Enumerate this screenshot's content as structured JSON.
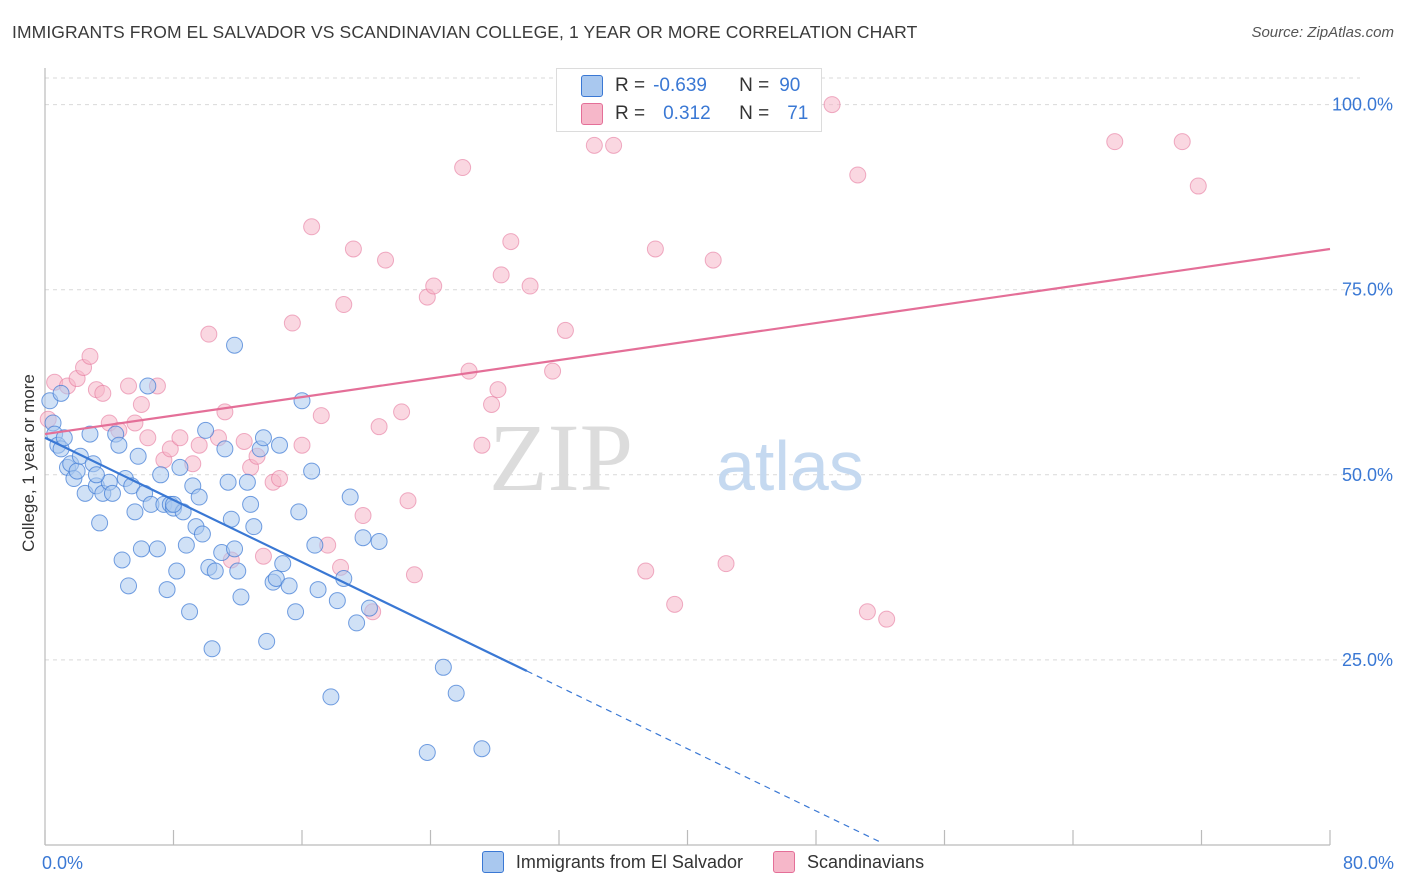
{
  "title": "IMMIGRANTS FROM EL SALVADOR VS SCANDINAVIAN COLLEGE, 1 YEAR OR MORE CORRELATION CHART",
  "source": "Source: ZipAtlas.com",
  "watermark": {
    "zip": "ZIP",
    "atlas": "atlas"
  },
  "stats": {
    "rows": [
      {
        "r_label": "R =",
        "r_value": "-0.639",
        "n_label": "N =",
        "n_value": "90",
        "color": "#a9c8ef"
      },
      {
        "r_label": "R =",
        "r_value": "0.312",
        "n_label": "N =",
        "n_value": "71",
        "color": "#f6b7c9"
      }
    ]
  },
  "legend": [
    {
      "label": "Immigrants from El Salvador",
      "color": "#a9c8ef"
    },
    {
      "label": "Scandinavians",
      "color": "#f6b7c9"
    }
  ],
  "x_labels": {
    "left": "0.0%",
    "right": "80.0%"
  },
  "colors": {
    "blue": "#3a78d4",
    "pink": "#e46f98",
    "blue_fill": "#a9c8ef",
    "pink_fill": "#f6b7c9",
    "grid": "#d9d9d9",
    "axis_text": "#3a78d4"
  },
  "chart_data": {
    "type": "scatter",
    "title": "IMMIGRANTS FROM EL SALVADOR VS SCANDINAVIAN COLLEGE, 1 YEAR OR MORE CORRELATION CHART",
    "xlabel": "",
    "ylabel": "College, 1 year or more",
    "xlim": [
      0,
      80
    ],
    "ylim": [
      0,
      104
    ],
    "y_ticks": [
      25,
      50,
      75,
      100
    ],
    "y_tick_labels": [
      "25.0%",
      "50.0%",
      "75.0%",
      "100.0%"
    ],
    "x_tick_labels": [
      "0.0%",
      "80.0%"
    ],
    "grid": true,
    "legend_position": "bottom",
    "series": [
      {
        "name": "Immigrants from El Salvador",
        "color": "#a9c8ef",
        "trend": {
          "x0": 0,
          "y0": 55,
          "x1": 30,
          "y1": 23.5,
          "dashed_to_x": 52
        },
        "points": [
          [
            0.3,
            60
          ],
          [
            0.5,
            57
          ],
          [
            0.6,
            55.5
          ],
          [
            0.8,
            54
          ],
          [
            1.0,
            53.5
          ],
          [
            1.2,
            55
          ],
          [
            1.4,
            51
          ],
          [
            1.6,
            51.5
          ],
          [
            1.8,
            49.5
          ],
          [
            2.0,
            50.5
          ],
          [
            2.2,
            52.5
          ],
          [
            2.5,
            47.5
          ],
          [
            2.8,
            55.5
          ],
          [
            3.0,
            51.5
          ],
          [
            3.2,
            48.5
          ],
          [
            3.4,
            43.5
          ],
          [
            3.6,
            47.5
          ],
          [
            4.0,
            49
          ],
          [
            4.2,
            47.5
          ],
          [
            4.4,
            55.5
          ],
          [
            4.6,
            54
          ],
          [
            4.8,
            38.5
          ],
          [
            5.0,
            49.5
          ],
          [
            5.2,
            35
          ],
          [
            5.4,
            48.5
          ],
          [
            5.6,
            45
          ],
          [
            5.8,
            52.5
          ],
          [
            6.0,
            40
          ],
          [
            6.2,
            47.5
          ],
          [
            6.6,
            46
          ],
          [
            7.0,
            40
          ],
          [
            7.2,
            50
          ],
          [
            7.4,
            46
          ],
          [
            7.6,
            34.5
          ],
          [
            7.8,
            46
          ],
          [
            8.0,
            45.5
          ],
          [
            8.2,
            37
          ],
          [
            8.4,
            51
          ],
          [
            8.6,
            45
          ],
          [
            8.8,
            40.5
          ],
          [
            9.0,
            31.5
          ],
          [
            9.2,
            48.5
          ],
          [
            9.4,
            43
          ],
          [
            9.6,
            47
          ],
          [
            9.8,
            42
          ],
          [
            10.0,
            56
          ],
          [
            10.2,
            37.5
          ],
          [
            10.4,
            26.5
          ],
          [
            10.6,
            37
          ],
          [
            11.0,
            39.5
          ],
          [
            11.2,
            53.5
          ],
          [
            11.4,
            49
          ],
          [
            11.6,
            44
          ],
          [
            11.8,
            40
          ],
          [
            12.0,
            37
          ],
          [
            12.2,
            33.5
          ],
          [
            12.6,
            49
          ],
          [
            12.8,
            46
          ],
          [
            13.0,
            43
          ],
          [
            13.4,
            53.5
          ],
          [
            13.6,
            55
          ],
          [
            13.8,
            27.5
          ],
          [
            14.2,
            35.5
          ],
          [
            14.4,
            36
          ],
          [
            14.6,
            54
          ],
          [
            14.8,
            38
          ],
          [
            15.2,
            35
          ],
          [
            15.6,
            31.5
          ],
          [
            15.8,
            45
          ],
          [
            16.0,
            60
          ],
          [
            16.8,
            40.5
          ],
          [
            17.0,
            34.5
          ],
          [
            17.8,
            20
          ],
          [
            18.2,
            33
          ],
          [
            18.6,
            36
          ],
          [
            19.0,
            47
          ],
          [
            19.4,
            30
          ],
          [
            19.8,
            41.5
          ],
          [
            20.2,
            32
          ],
          [
            20.8,
            41
          ],
          [
            23.8,
            12.5
          ],
          [
            24.8,
            24
          ],
          [
            25.6,
            20.5
          ],
          [
            27.2,
            13
          ],
          [
            11.8,
            67.5
          ],
          [
            6.4,
            62
          ],
          [
            16.6,
            50.5
          ],
          [
            8.0,
            46
          ],
          [
            3.2,
            50
          ],
          [
            1.0,
            61
          ]
        ]
      },
      {
        "name": "Scandinavians",
        "color": "#f6b7c9",
        "trend": {
          "x0": 0,
          "y0": 55.5,
          "x1": 80,
          "y1": 80.5
        },
        "points": [
          [
            0.2,
            57.5
          ],
          [
            0.6,
            62.5
          ],
          [
            1.4,
            62
          ],
          [
            2.0,
            63
          ],
          [
            2.4,
            64.5
          ],
          [
            2.8,
            66
          ],
          [
            3.2,
            61.5
          ],
          [
            3.6,
            61
          ],
          [
            4.0,
            57
          ],
          [
            4.6,
            56
          ],
          [
            5.2,
            62
          ],
          [
            5.6,
            57
          ],
          [
            6.0,
            59.5
          ],
          [
            6.4,
            55
          ],
          [
            7.0,
            62
          ],
          [
            7.4,
            52
          ],
          [
            7.8,
            53.5
          ],
          [
            8.4,
            55
          ],
          [
            9.2,
            51.5
          ],
          [
            9.6,
            54
          ],
          [
            10.2,
            69
          ],
          [
            10.8,
            55
          ],
          [
            11.2,
            58.5
          ],
          [
            11.6,
            38.5
          ],
          [
            12.4,
            54.5
          ],
          [
            12.8,
            51
          ],
          [
            13.2,
            52.5
          ],
          [
            13.6,
            39
          ],
          [
            14.2,
            49
          ],
          [
            14.6,
            49.5
          ],
          [
            15.4,
            70.5
          ],
          [
            16.0,
            54
          ],
          [
            16.6,
            83.5
          ],
          [
            17.2,
            58
          ],
          [
            17.6,
            40.5
          ],
          [
            18.4,
            37.5
          ],
          [
            18.6,
            73
          ],
          [
            19.2,
            80.5
          ],
          [
            19.8,
            44.5
          ],
          [
            20.4,
            31.5
          ],
          [
            20.8,
            56.5
          ],
          [
            21.2,
            79
          ],
          [
            22.2,
            58.5
          ],
          [
            22.6,
            46.5
          ],
          [
            23.0,
            36.5
          ],
          [
            23.8,
            74
          ],
          [
            24.2,
            75.5
          ],
          [
            26.0,
            91.5
          ],
          [
            26.4,
            64
          ],
          [
            27.2,
            54
          ],
          [
            27.8,
            59.5
          ],
          [
            28.2,
            61.5
          ],
          [
            28.4,
            77
          ],
          [
            29.0,
            81.5
          ],
          [
            30.2,
            75.5
          ],
          [
            31.6,
            64
          ],
          [
            32.4,
            69.5
          ],
          [
            37.4,
            37
          ],
          [
            38.0,
            80.5
          ],
          [
            39.2,
            32.5
          ],
          [
            41.6,
            79
          ],
          [
            42.4,
            38
          ],
          [
            49.0,
            100
          ],
          [
            50.6,
            90.5
          ],
          [
            51.2,
            31.5
          ],
          [
            52.4,
            30.5
          ],
          [
            66.6,
            95
          ],
          [
            70.8,
            95
          ],
          [
            71.8,
            89
          ],
          [
            35.4,
            94.5
          ],
          [
            34.2,
            94.5
          ]
        ]
      }
    ]
  }
}
